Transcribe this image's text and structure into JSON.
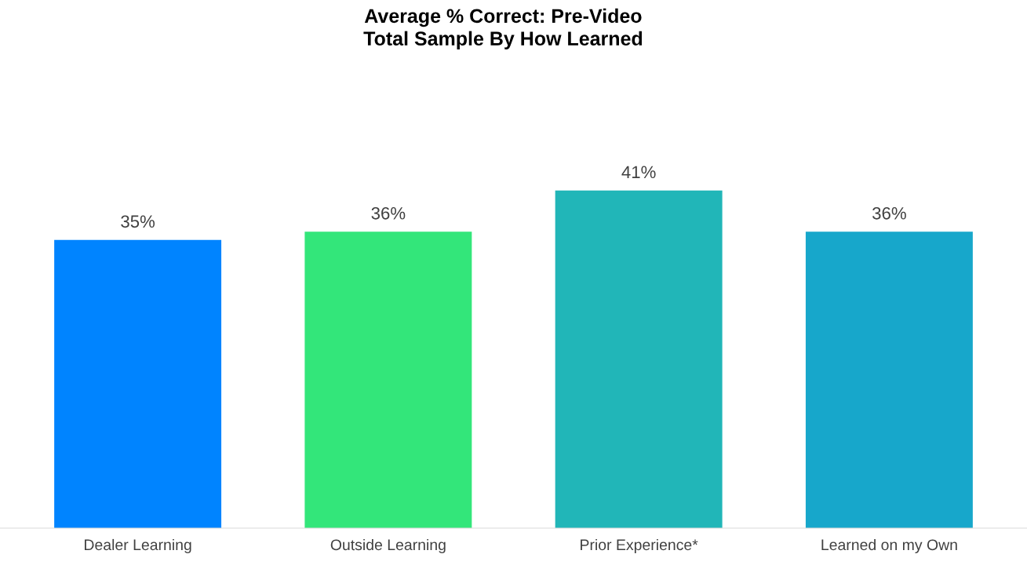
{
  "chart_data": {
    "type": "bar",
    "title": "Average % Correct: Pre-Video\nTotal Sample By How Learned",
    "categories": [
      "Dealer Learning",
      "Outside Learning",
      "Prior Experience*",
      "Learned on my Own"
    ],
    "values": [
      35,
      36,
      41,
      36
    ],
    "colors": [
      "#0084ff",
      "#33e67a",
      "#21b6b8",
      "#17a7cb"
    ],
    "value_labels": [
      "35%",
      "36%",
      "41%",
      "36%"
    ]
  }
}
